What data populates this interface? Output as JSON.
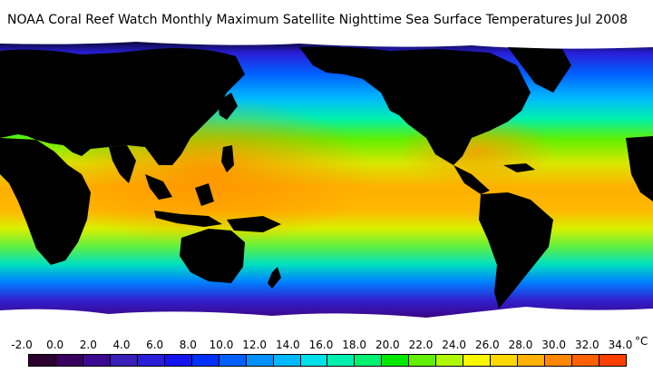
{
  "header": {
    "title": "NOAA Coral Reef Watch Monthly Maximum Satellite Nighttime Sea Surface Temperatures",
    "date": "Jul 2008"
  },
  "legend": {
    "unit": "°C",
    "ticks": [
      "-2.0",
      "0.0",
      "2.0",
      "4.0",
      "6.0",
      "8.0",
      "10.0",
      "12.0",
      "14.0",
      "16.0",
      "18.0",
      "20.0",
      "22.0",
      "24.0",
      "26.0",
      "28.0",
      "30.0",
      "32.0",
      "34.0"
    ],
    "colors": [
      "#2b0030",
      "#3a0060",
      "#3c0a90",
      "#3a1fb8",
      "#2a1ed8",
      "#1414f0",
      "#0030ff",
      "#0060ff",
      "#0090ff",
      "#00b8ff",
      "#00e0e8",
      "#00f0b0",
      "#00f070",
      "#00e800",
      "#60f000",
      "#b0f800",
      "#f8f800",
      "#ffd800",
      "#ffb000",
      "#ff8800",
      "#ff6000",
      "#ff4000"
    ]
  }
}
